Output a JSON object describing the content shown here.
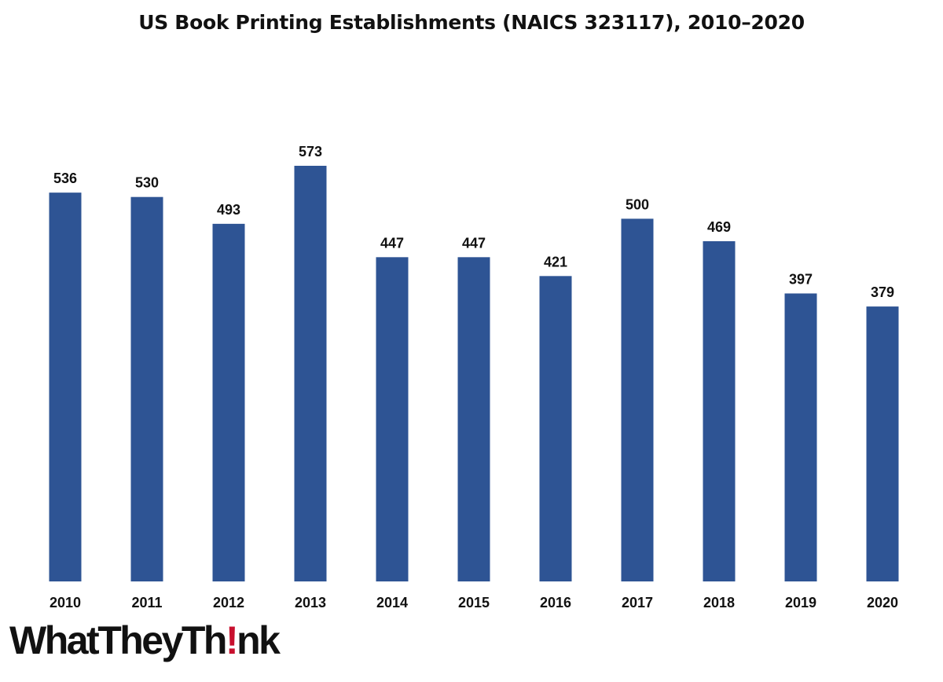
{
  "chart_data": {
    "type": "bar",
    "title": "US Book Printing Establishments (NAICS 323117), 2010–2020",
    "xlabel": "",
    "ylabel": "",
    "categories": [
      "2010",
      "2011",
      "2012",
      "2013",
      "2014",
      "2015",
      "2016",
      "2017",
      "2018",
      "2019",
      "2020"
    ],
    "values": [
      536,
      530,
      493,
      573,
      447,
      447,
      421,
      500,
      469,
      397,
      379
    ],
    "ylim": [
      0,
      573
    ],
    "grid": false,
    "legend": "none",
    "data_labels": true,
    "bar_color": "#2e5494"
  },
  "logo": {
    "text_before": "WhatTheyTh",
    "mark": "!",
    "text_after": "nk",
    "mark_color": "#c8102e"
  }
}
